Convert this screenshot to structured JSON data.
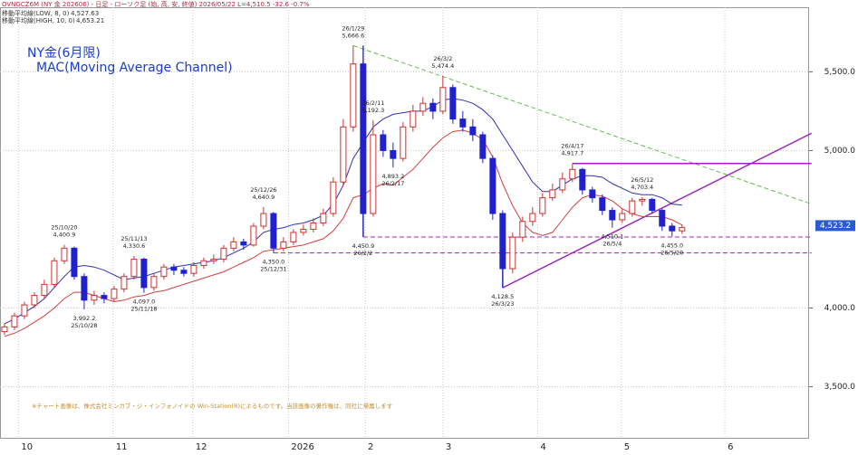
{
  "chart_data": {
    "type": "candlestick",
    "header": "OVNGCZ6M (NY 金 202606) - 日足 - ローソク足 (始, 高, 安, 終値)   2026/05/22 L=4,510.5 -32.6 -0.7%",
    "title": "NY金(6月限)",
    "subtitle": "MAC(Moving Average Channel)",
    "note": "※チャート画像は、株式会社ミンカブ・ジ・インフォノイドの Win-Station(R)によるものです。当該画像の著作権は、同社に帰属します",
    "up_color": "#d03030",
    "down_color": "#2020d0",
    "open": [
      3850,
      3880,
      3950,
      4020,
      4080,
      4150,
      4300,
      4380,
      4200,
      4050,
      4080,
      4060,
      4120,
      4200,
      4310,
      4130,
      4200,
      4260,
      4240,
      4220,
      4270,
      4300,
      4310,
      4380,
      4420,
      4400,
      4520,
      4600,
      4380,
      4420,
      4480,
      4500,
      4540,
      4600,
      4800,
      5150,
      5550,
      4600,
      5100,
      5000,
      4950,
      5150,
      5250,
      5300,
      5250,
      5400,
      5200,
      5150,
      5100,
      4950,
      4600,
      4250,
      4450,
      4550,
      4600,
      4700,
      4750,
      4820,
      4880,
      4750,
      4700,
      4620,
      4560,
      4600,
      4680,
      4690,
      4620,
      4520,
      4490
    ],
    "high": [
      3900,
      3970,
      4040,
      4100,
      4180,
      4320,
      4400.9,
      4390,
      4220,
      4110,
      4100,
      4140,
      4220,
      4330.6,
      4320,
      4220,
      4280,
      4280,
      4260,
      4290,
      4320,
      4340,
      4400,
      4450,
      4440,
      4540,
      4640.9,
      4610,
      4450,
      4500,
      4530,
      4570,
      4630,
      4830,
      5200,
      5666.6,
      5560,
      5192.3,
      5130,
      5050,
      5180,
      5290,
      5340,
      5330,
      5474.4,
      5420,
      5250,
      5200,
      5120,
      4970,
      4620,
      4480,
      4580,
      4640,
      4730,
      4790,
      4860,
      4917.7,
      4890,
      4770,
      4720,
      4640,
      4630,
      4700,
      4703.4,
      4700,
      4630,
      4540,
      4530
    ],
    "low": [
      3830,
      3860,
      3930,
      4000,
      4060,
      4130,
      4280,
      4180,
      3992.2,
      4020,
      4030,
      4040,
      4100,
      4180,
      4097.0,
      4110,
      4180,
      4210,
      4200,
      4200,
      4250,
      4280,
      4290,
      4360,
      4370,
      4390,
      4500,
      4350.0,
      4360,
      4400,
      4460,
      4480,
      4520,
      4580,
      4780,
      5120,
      4450.9,
      4580,
      4960,
      4893.2,
      4930,
      5120,
      5220,
      5200,
      5230,
      5170,
      5120,
      5060,
      4920,
      4560,
      4128.5,
      4220,
      4420,
      4520,
      4580,
      4680,
      4730,
      4800,
      4720,
      4670,
      4590,
      4510.1,
      4540,
      4580,
      4650,
      4600,
      4490,
      4455.0,
      4470
    ],
    "close": [
      3880,
      3950,
      4020,
      4080,
      4150,
      4300,
      4380,
      4200,
      4050,
      4080,
      4060,
      4120,
      4200,
      4310,
      4130,
      4200,
      4260,
      4240,
      4220,
      4270,
      4300,
      4310,
      4380,
      4420,
      4400,
      4520,
      4600,
      4380,
      4420,
      4480,
      4500,
      4540,
      4600,
      4800,
      5150,
      5550,
      4600,
      5100,
      5000,
      4950,
      5150,
      5250,
      5300,
      5250,
      5400,
      5200,
      5150,
      5100,
      4950,
      4600,
      4250,
      4450,
      4550,
      4600,
      4700,
      4750,
      4820,
      4880,
      4750,
      4700,
      4620,
      4560,
      4600,
      4680,
      4690,
      4620,
      4520,
      4490,
      4510.5
    ],
    "series": [
      {
        "name": "移動平均線(LOW, 8, 0)",
        "last_label": "4,527.63",
        "color": "#d04040",
        "values": [
          3820,
          3840,
          3870,
          3910,
          3950,
          4000,
          4060,
          4100,
          4100,
          4080,
          4060,
          4040,
          4050,
          4070,
          4080,
          4100,
          4110,
          4130,
          4150,
          4170,
          4190,
          4210,
          4230,
          4260,
          4290,
          4320,
          4360,
          4370,
          4380,
          4390,
          4400,
          4420,
          4440,
          4490,
          4570,
          4700,
          4720,
          4760,
          4790,
          4780,
          4830,
          4880,
          4950,
          5020,
          5080,
          5120,
          5130,
          5110,
          5070,
          4960,
          4790,
          4650,
          4540,
          4480,
          4460,
          4480,
          4560,
          4640,
          4700,
          4720,
          4710,
          4680,
          4630,
          4600,
          4580,
          4580,
          4580,
          4560,
          4527.63
        ]
      },
      {
        "name": "移動平均線(HIGH, 10, 0)",
        "last_label": "4,653.21",
        "color": "#3030b0",
        "values": [
          3900,
          3930,
          3970,
          4010,
          4060,
          4130,
          4200,
          4260,
          4270,
          4260,
          4240,
          4210,
          4180,
          4190,
          4200,
          4220,
          4240,
          4260,
          4270,
          4280,
          4290,
          4300,
          4320,
          4350,
          4380,
          4420,
          4480,
          4500,
          4510,
          4530,
          4540,
          4560,
          4590,
          4660,
          4780,
          4950,
          5050,
          5150,
          5200,
          5230,
          5240,
          5250,
          5250,
          5280,
          5320,
          5330,
          5320,
          5300,
          5260,
          5200,
          5100,
          5000,
          4900,
          4800,
          4740,
          4740,
          4780,
          4820,
          4840,
          4840,
          4830,
          4790,
          4760,
          4730,
          4720,
          4720,
          4700,
          4660,
          4653.21
        ]
      }
    ],
    "annotations": [
      {
        "date": "25/10/20",
        "label": "4,400.9",
        "value": 4400.9
      },
      {
        "date": "25/10/28",
        "label": "3,992.2",
        "value": 3992.2
      },
      {
        "date": "25/11/13",
        "label": "4,330.6",
        "value": 4330.6
      },
      {
        "date": "25/11/18",
        "label": "4,097.0",
        "value": 4097.0
      },
      {
        "date": "25/12/26",
        "label": "4,640.9",
        "value": 4640.9
      },
      {
        "date": "25/12/31",
        "label": "4,350.0",
        "value": 4350.0
      },
      {
        "date": "26/1/29",
        "label": "5,666.6",
        "value": 5666.6
      },
      {
        "date": "26/2/2",
        "label": "4,450.9",
        "value": 4450.9
      },
      {
        "date": "26/2/11",
        "label": "5,192.3",
        "value": 5192.3
      },
      {
        "date": "26/2/17",
        "label": "4,893.2",
        "value": 4893.2
      },
      {
        "date": "26/3/2",
        "label": "5,474.4",
        "value": 5474.4
      },
      {
        "date": "26/3/23",
        "label": "4,128.5",
        "value": 4128.5
      },
      {
        "date": "26/4/17",
        "label": "4,917.7",
        "value": 4917.7
      },
      {
        "date": "26/5/4",
        "label": "4,510.1",
        "value": 4510.1
      },
      {
        "date": "26/5/12",
        "label": "4,703.4",
        "value": 4703.4
      },
      {
        "date": "26/5/20",
        "label": "4,455.0",
        "value": 4455.0
      }
    ],
    "trendlines": [
      {
        "from": [
          35,
          5666.6
        ],
        "to": [
          81,
          4660
        ],
        "color": "#66bb55",
        "style": "dashed"
      },
      {
        "from": [
          50,
          4128.5
        ],
        "to": [
          81,
          5110
        ],
        "color": "#a020c0",
        "style": "solid"
      },
      {
        "from": [
          57,
          4917.7
        ],
        "to": [
          81,
          4917.7
        ],
        "color": "#a020c0",
        "style": "solid"
      },
      {
        "from": [
          36,
          4450.9
        ],
        "to": [
          81,
          4450.9
        ],
        "color": "#a020c0",
        "style": "dashed"
      },
      {
        "from": [
          27,
          4350.0
        ],
        "to": [
          81,
          4350.0
        ],
        "color": "#a020c0",
        "style": "dashed"
      },
      {
        "from": [
          36,
          5666.6
        ],
        "to": [
          36,
          4450.9
        ],
        "color": "#4040a0",
        "style": "solid"
      },
      {
        "from": [
          50,
          4450.9
        ],
        "to": [
          50,
          4128.5
        ],
        "color": "#4040a0",
        "style": "solid"
      }
    ],
    "last_price": {
      "label": "4,523.2",
      "value": 4523.2,
      "color": "#2a5cd0"
    },
    "xlim": [
      -0.45,
      80.75
    ],
    "xticks": [
      {
        "value": 1.4,
        "label": "10"
      },
      {
        "value": 10.9,
        "label": "11"
      },
      {
        "value": 18.9,
        "label": "12"
      },
      {
        "value": 28.5,
        "label": "2026"
      },
      {
        "value": 36.2,
        "label": "2"
      },
      {
        "value": 44,
        "label": "3"
      },
      {
        "value": 53.5,
        "label": "4"
      },
      {
        "value": 61.9,
        "label": "5"
      },
      {
        "value": 72.3,
        "label": "6"
      }
    ],
    "ylim": [
      3170,
      5910
    ],
    "yticks": [
      {
        "value": 3500,
        "label": "3,500.0"
      },
      {
        "value": 4000,
        "label": "4,000.0"
      },
      {
        "value": 5000,
        "label": "5,000.0"
      },
      {
        "value": 5500,
        "label": "5,500.0"
      }
    ],
    "grid": true
  }
}
